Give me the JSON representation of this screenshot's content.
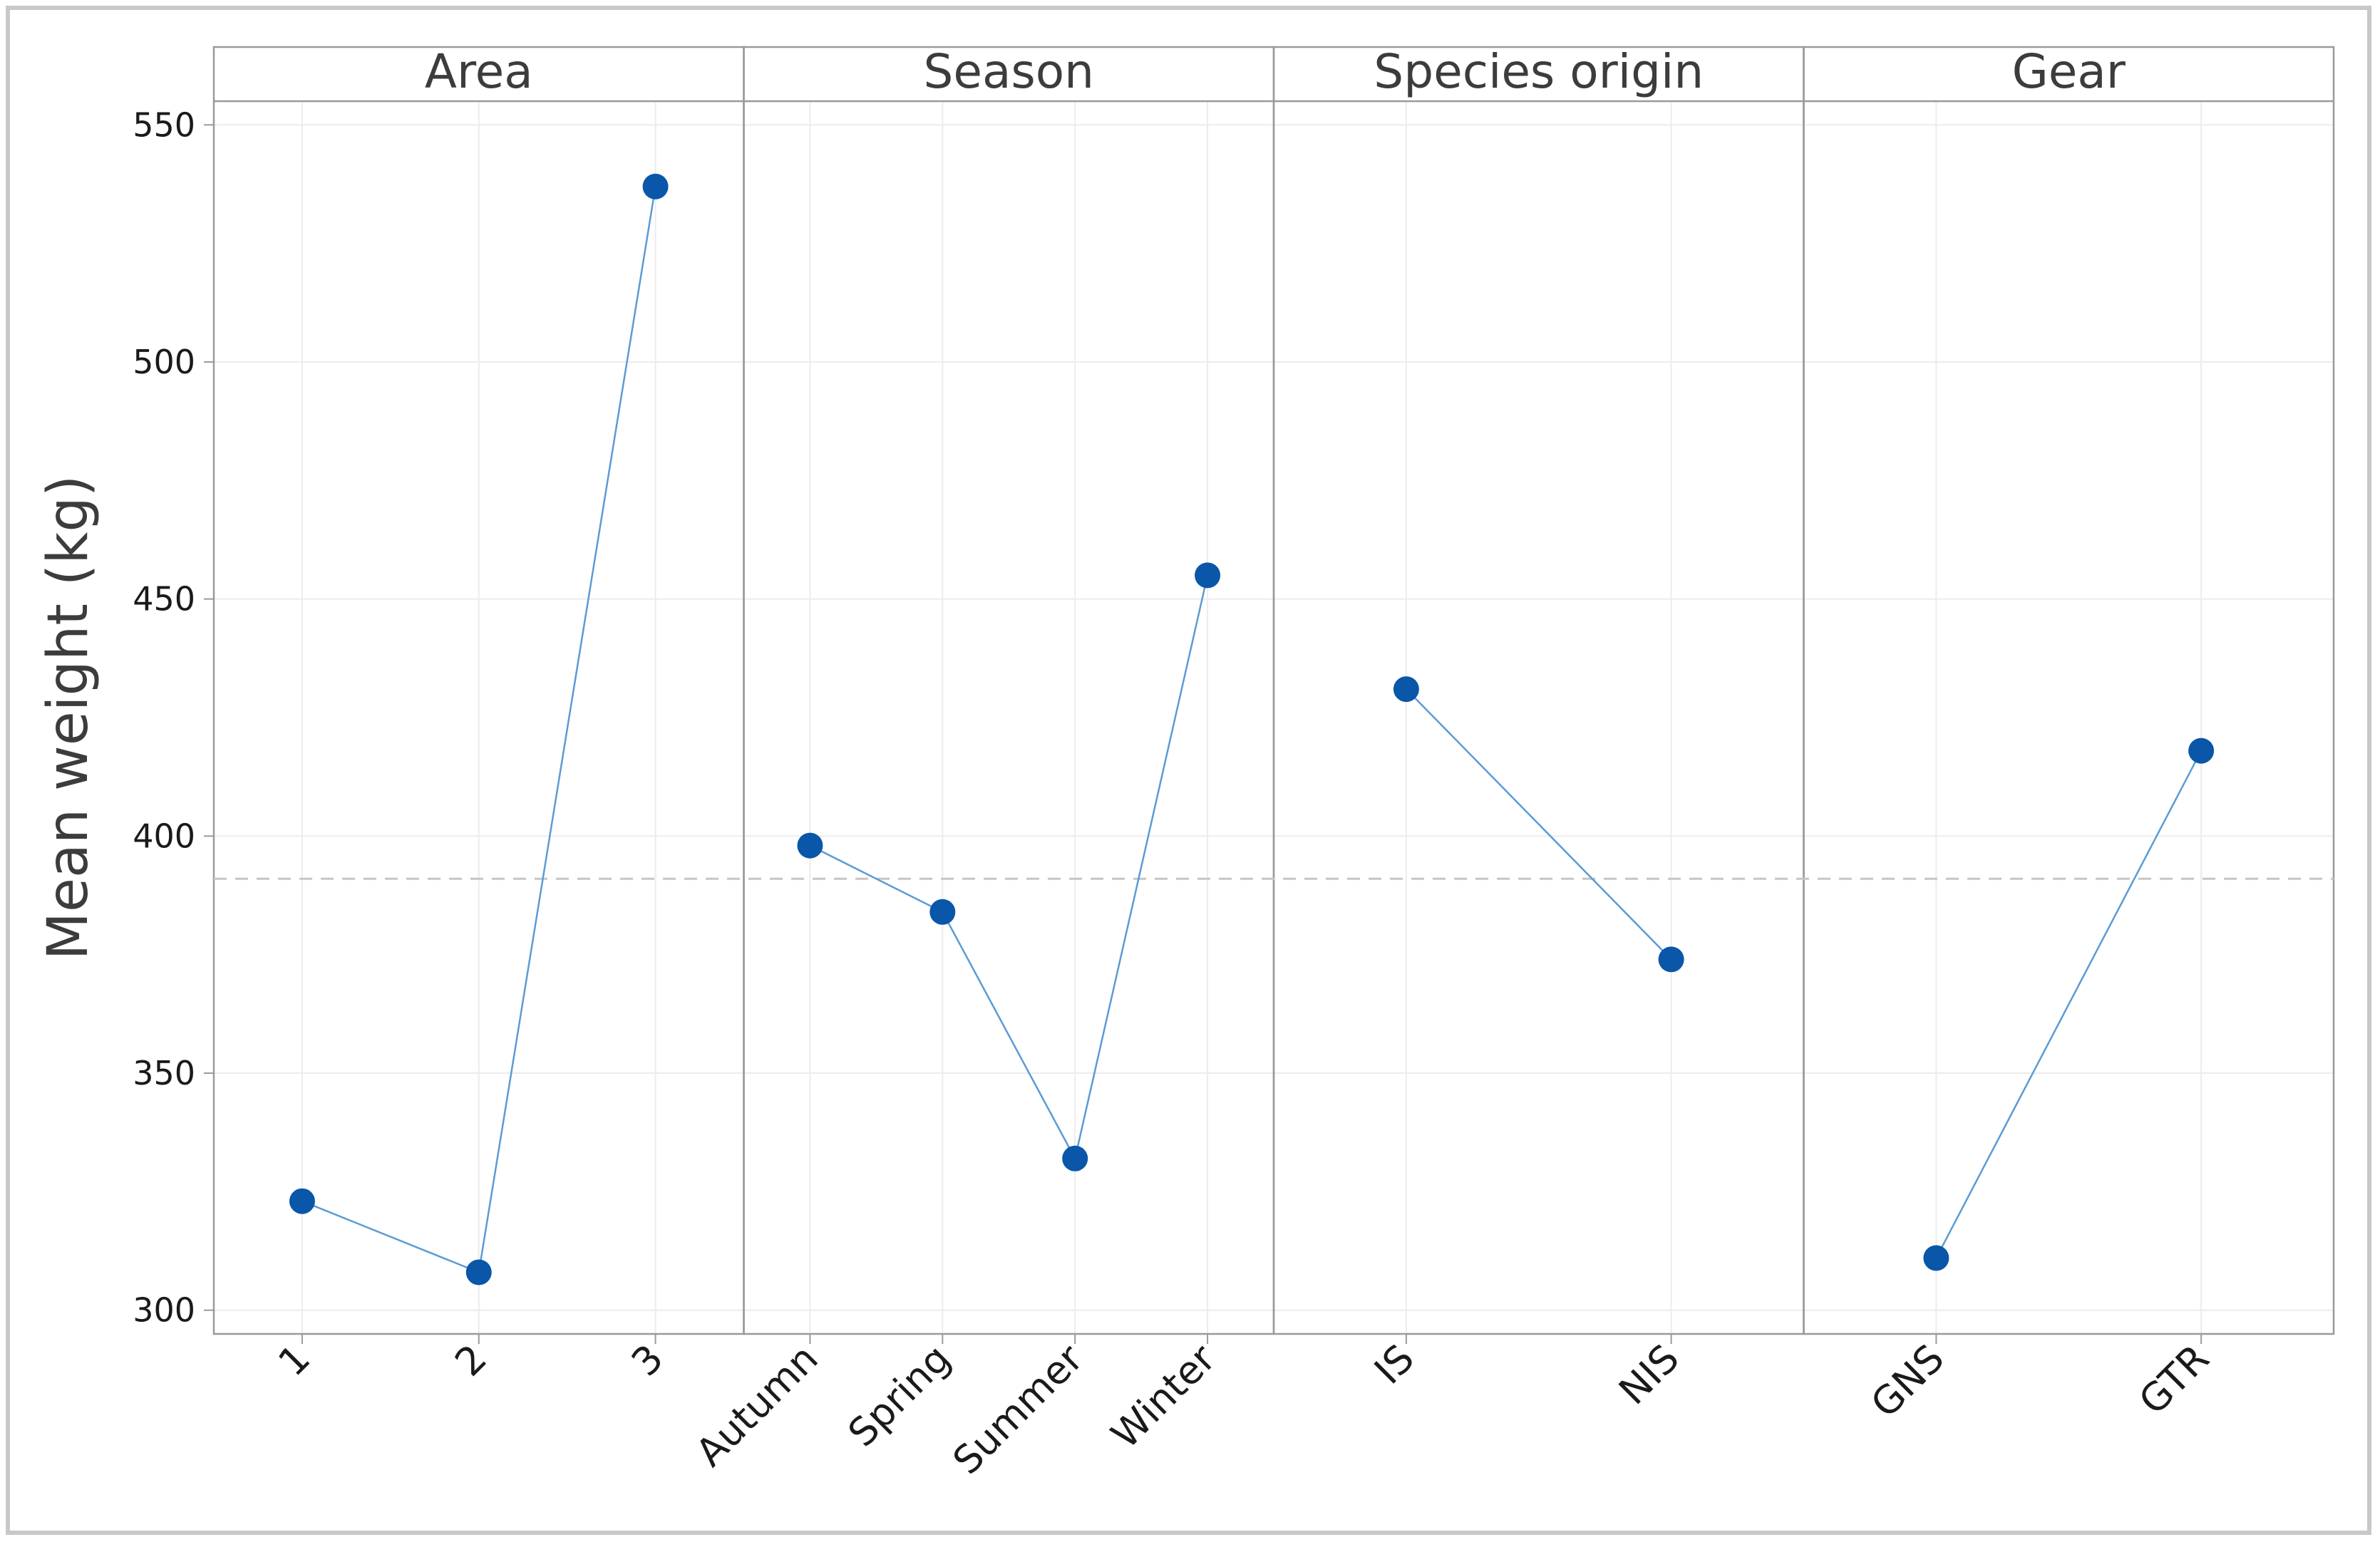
{
  "chart_data": {
    "type": "line",
    "title": "",
    "ylabel": "Mean weight (kg)",
    "xlabel": "",
    "ylim": [
      295,
      555
    ],
    "yticks": [
      300,
      350,
      400,
      450,
      500,
      550
    ],
    "overall_mean": 391,
    "grid": true,
    "colors": {
      "line": "#5b9bd5",
      "marker": "#0a56a8",
      "mean_line": "#c6c6c6"
    },
    "panels": [
      {
        "name": "Area",
        "categories": [
          "1",
          "2",
          "3"
        ],
        "values": [
          323,
          308,
          537
        ]
      },
      {
        "name": "Season",
        "categories": [
          "Autumn",
          "Spring",
          "Summer",
          "Winter"
        ],
        "values": [
          398,
          384,
          332,
          455
        ]
      },
      {
        "name": "Species origin",
        "categories": [
          "IS",
          "NIS"
        ],
        "values": [
          431,
          374
        ]
      },
      {
        "name": "Gear",
        "categories": [
          "GNS",
          "GTR"
        ],
        "values": [
          311,
          418
        ]
      }
    ]
  }
}
